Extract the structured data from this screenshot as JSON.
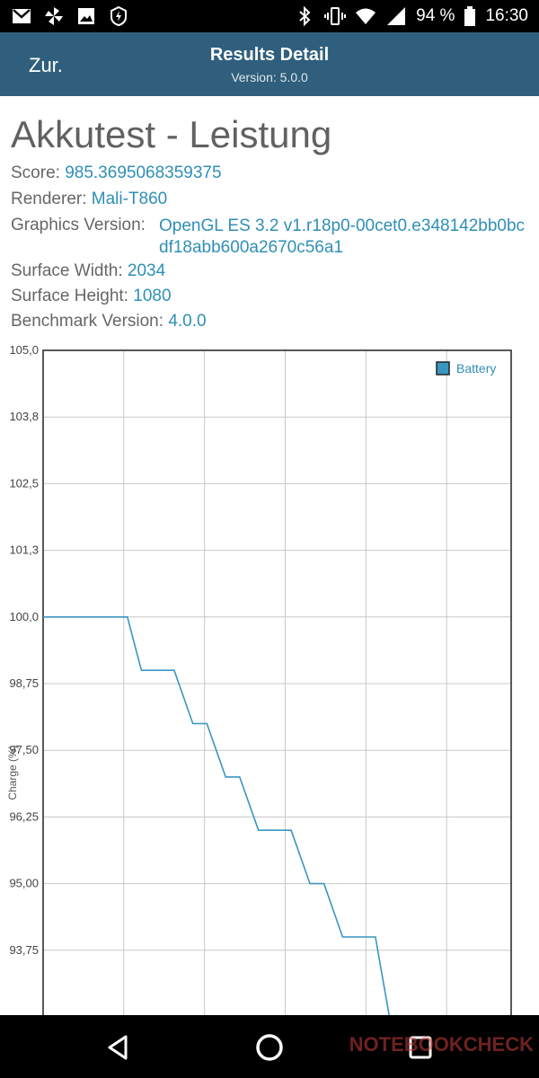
{
  "status_bar": {
    "battery_percent": "94 %",
    "time": "16:30",
    "left_icons": [
      "gmail-icon",
      "pinwheel-icon",
      "image-icon",
      "flash-icon"
    ],
    "right_icons": [
      "bluetooth-icon",
      "vibrate-icon",
      "wifi-icon",
      "signal-icon",
      "battery-icon"
    ]
  },
  "app_bar": {
    "back_label": "Zur.",
    "title": "Results Detail",
    "subtitle": "Version: 5.0.0",
    "background": "#2f5f7c"
  },
  "heading": "Akkutest - Leistung",
  "info": {
    "score_label": "Score: ",
    "score_value": "985.3695068359375",
    "renderer_label": "Renderer: ",
    "renderer_value": "Mali-T860",
    "gv_label": "Graphics Version: ",
    "gv_value": "OpenGL ES 3.2 v1.r18p0-00cet0.e348142bb0bcdf18abb600a2670c56a1",
    "sw_label": "Surface Width: ",
    "sw_value": "2034",
    "sh_label": "Surface Height: ",
    "sh_value": "1080",
    "bv_label": "Benchmark Version: ",
    "bv_value": "4.0.0",
    "value_color": "#2f8fb6"
  },
  "chart_data": {
    "type": "line",
    "ylabel": "Charge (%)",
    "legend": [
      "Battery"
    ],
    "legend_position": "top-right",
    "grid": true,
    "y_tick_labels": [
      "105,0",
      "103,8",
      "102,5",
      "101,3",
      "100,0",
      "98,75",
      "97,50",
      "96,25",
      "95,00",
      "93,75"
    ],
    "y_ticks": [
      105.0,
      103.75,
      102.5,
      101.25,
      100.0,
      98.75,
      97.5,
      96.25,
      95.0,
      93.75
    ],
    "ylim": [
      92.5,
      105.0
    ],
    "xlim": [
      0,
      100
    ],
    "series": [
      {
        "name": "Battery",
        "color": "#3896bf",
        "x": [
          0,
          18,
          21,
          28,
          32,
          35,
          39,
          42,
          46,
          53,
          57,
          60,
          64,
          71,
          74
        ],
        "y": [
          100,
          100,
          99,
          99,
          98,
          98,
          97,
          97,
          96,
          96,
          95,
          95,
          94,
          94,
          92.5
        ]
      }
    ]
  },
  "nav_bar": {
    "watermark": "NOTEBOOKCHECK"
  }
}
